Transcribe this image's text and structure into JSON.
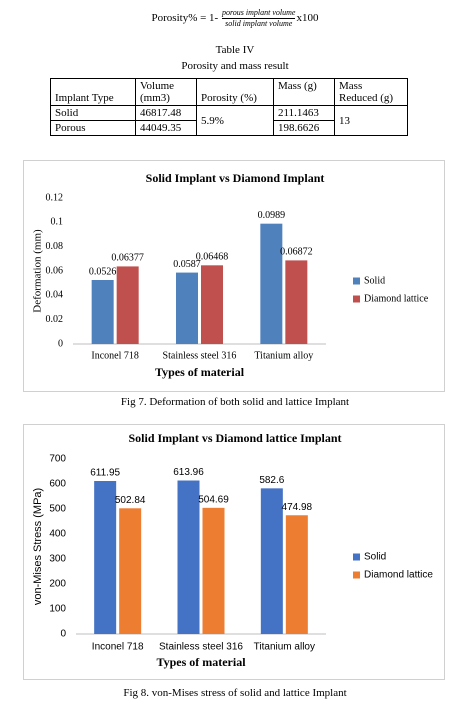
{
  "formula": {
    "lhs": "Porosity% = 1-",
    "numerator": "porous implant volume",
    "denominator": "solid implant volume",
    "rhs": "x100"
  },
  "table": {
    "title": "Table IV",
    "subtitle": "Porosity and mass result",
    "header": [
      "Implant Type",
      "Volume (mm3)",
      "Porosity (%)",
      "Mass (g)",
      "Mass Reduced (g)"
    ],
    "rows": [
      [
        "Solid",
        "46817.48",
        "5.9%",
        "211.1463",
        "13"
      ],
      [
        "Porous",
        "44049.35",
        "198.6626"
      ]
    ]
  },
  "chart_data": [
    {
      "type": "bar",
      "title": "Solid Implant vs Diamond Implant",
      "xlabel": "Types of material",
      "ylabel": "Deformation (mm)",
      "categories": [
        "Inconel 718",
        "Stainless steel 316",
        "Titanium alloy"
      ],
      "series": [
        {
          "name": "Solid",
          "color": "#4f81bd",
          "values": [
            0.0526,
            0.0587,
            0.0989
          ]
        },
        {
          "name": "Diamond lattice",
          "color": "#c0504d",
          "values": [
            0.06377,
            0.06468,
            0.06872
          ]
        }
      ],
      "ylim": [
        0,
        0.12
      ],
      "yticks": [
        0,
        0.02,
        0.04,
        0.06,
        0.08,
        0.1,
        0.12
      ],
      "legend": "right",
      "caption": "Fig 7. Deformation of both solid and lattice Implant"
    },
    {
      "type": "bar",
      "title": "Solid Implant vs Diamond lattice Implant",
      "xlabel": "Types of material",
      "ylabel": "von-Mises Stress (MPa)",
      "categories": [
        "Inconel 718",
        "Stainless steel 316",
        "Titanium alloy"
      ],
      "series": [
        {
          "name": "Solid",
          "color": "#4472c4",
          "values": [
            611.95,
            613.96,
            582.6
          ]
        },
        {
          "name": "Diamond lattice",
          "color": "#ed7d31",
          "values": [
            502.84,
            504.69,
            474.98
          ]
        }
      ],
      "ylim": [
        0,
        700
      ],
      "yticks": [
        0,
        100,
        200,
        300,
        400,
        500,
        600,
        700
      ],
      "legend": "right",
      "caption": "Fig 8. von-Mises stress of solid and lattice Implant"
    }
  ]
}
